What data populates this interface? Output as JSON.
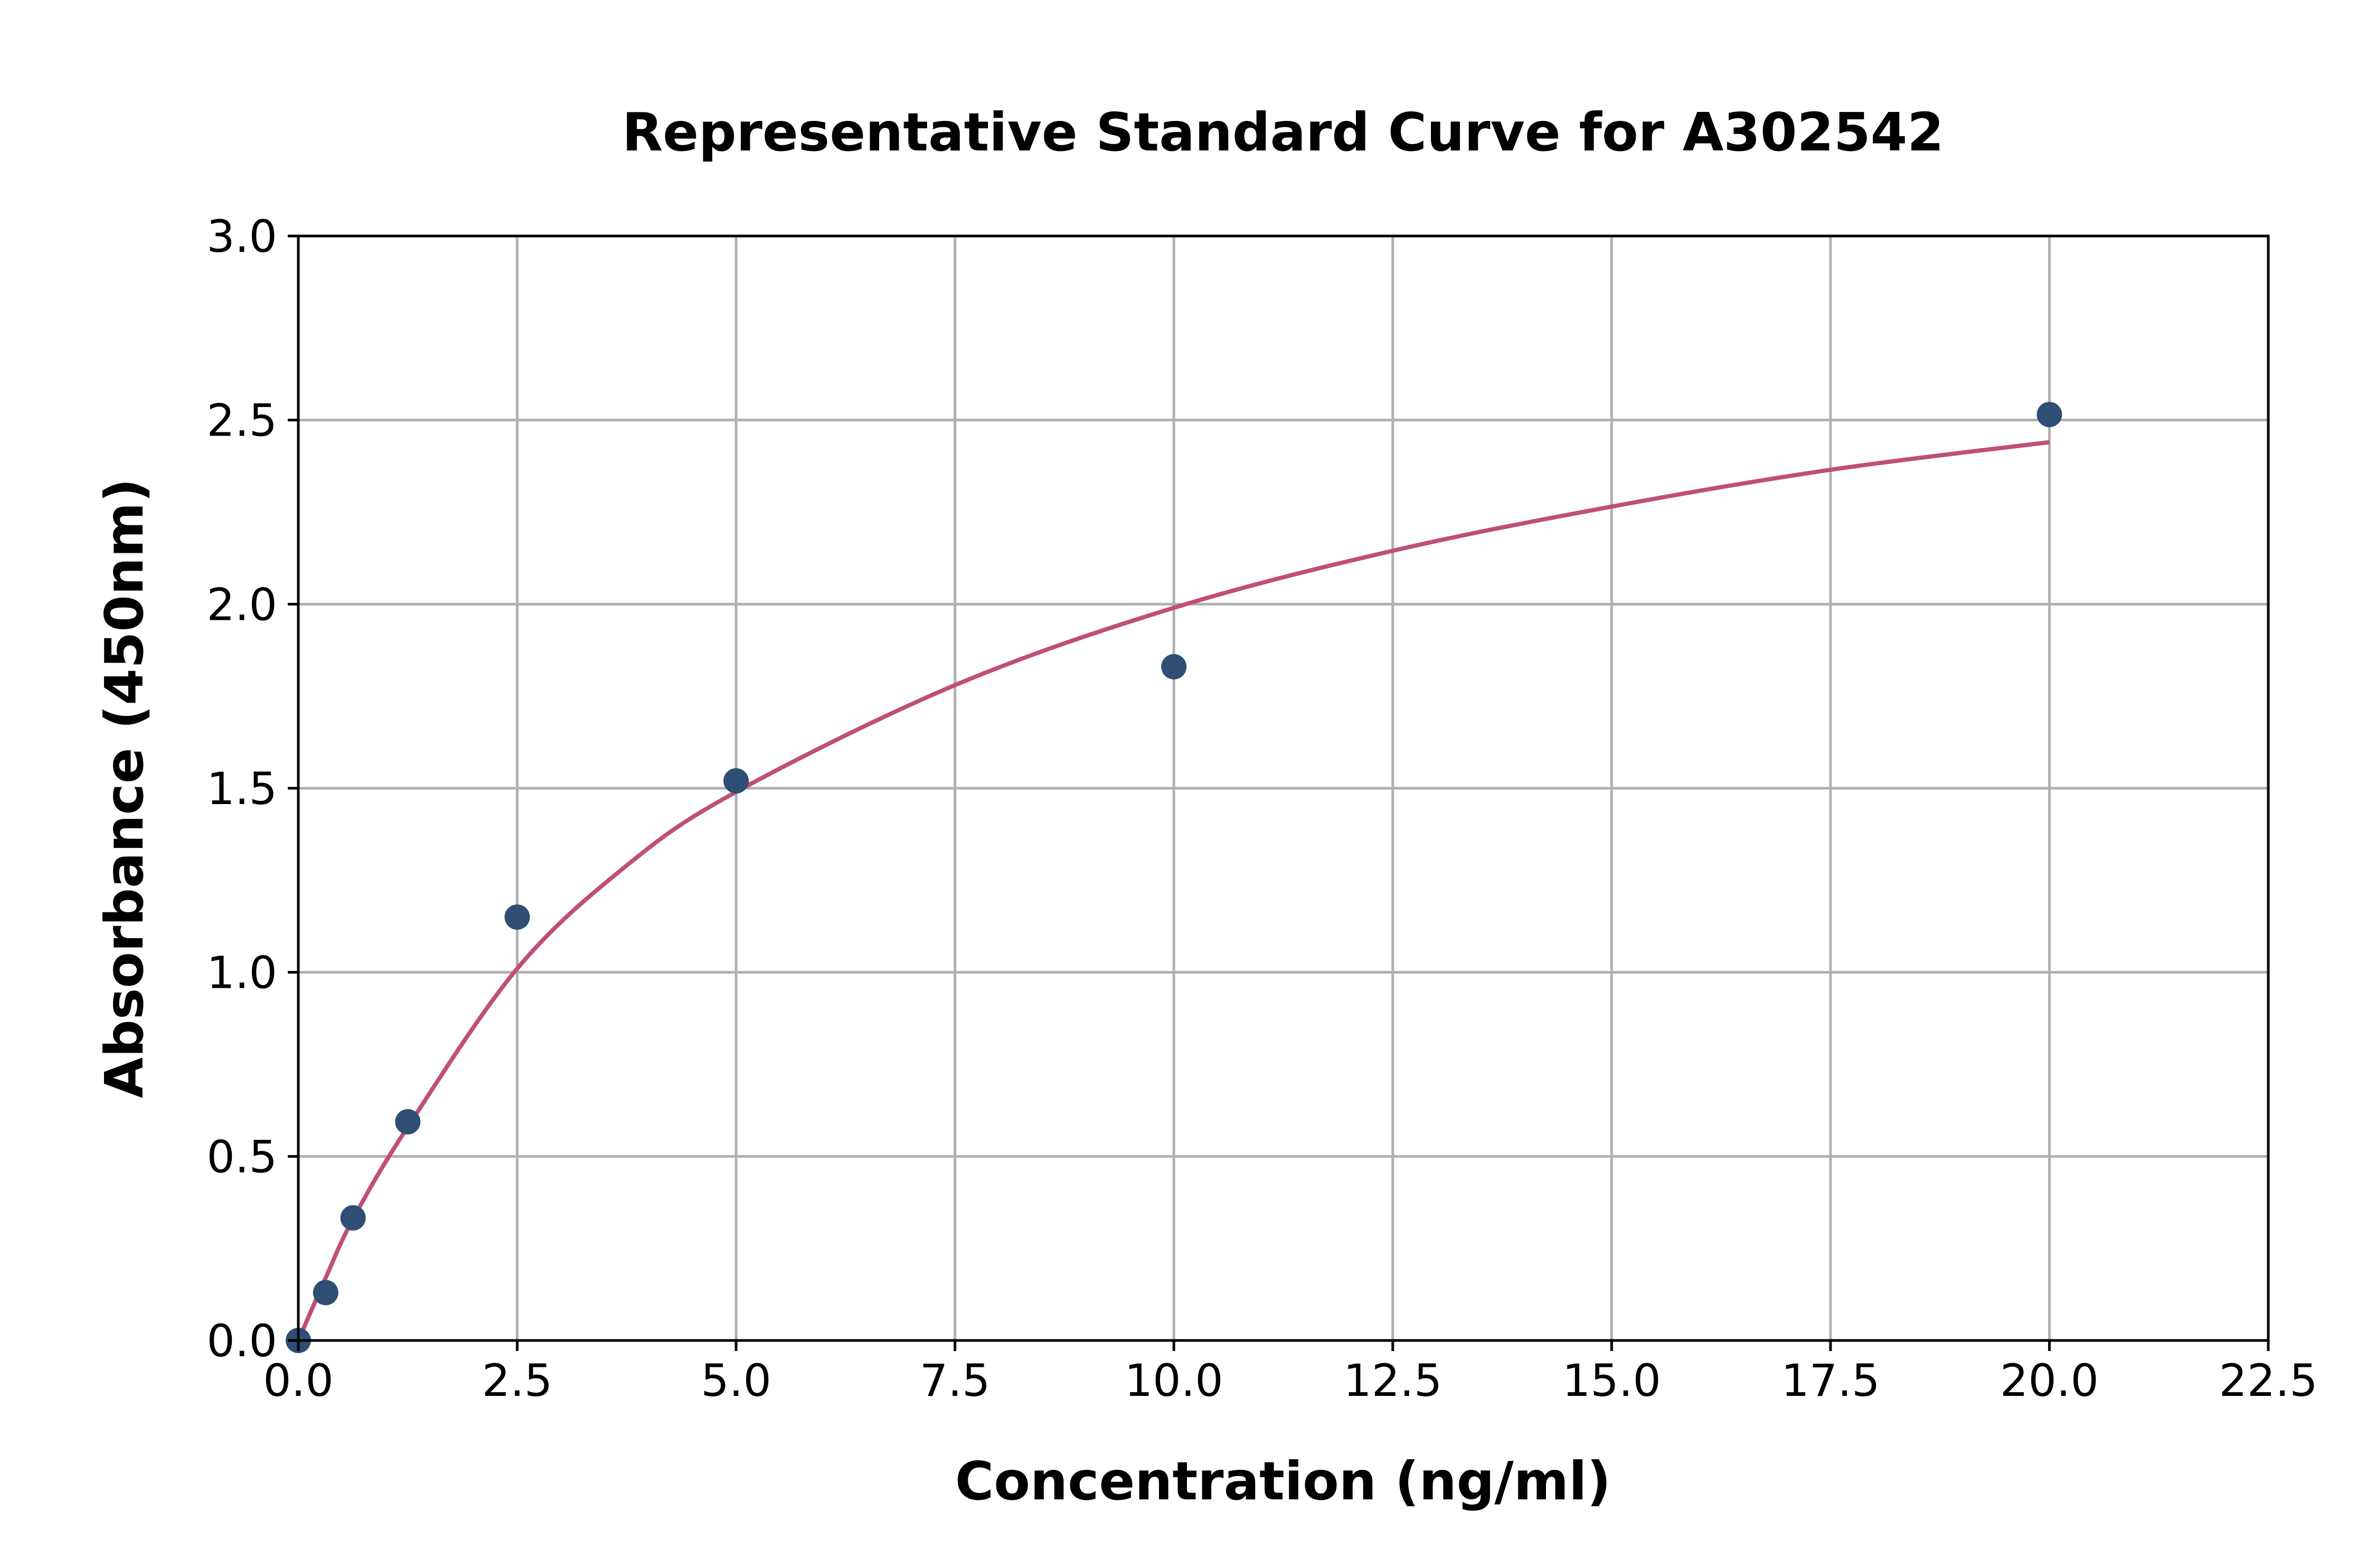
{
  "chart_data": {
    "type": "scatter",
    "title": "Representative Standard Curve for A302542",
    "xlabel": "Concentration (ng/ml)",
    "ylabel": "Absorbance (450nm)",
    "xlim": [
      0,
      22.5
    ],
    "ylim": [
      0,
      3.0
    ],
    "grid": true,
    "xticks": [
      "0.0",
      "2.5",
      "5.0",
      "7.5",
      "10.0",
      "12.5",
      "15.0",
      "17.5",
      "20.0",
      "22.5"
    ],
    "yticks": [
      "0.0",
      "0.5",
      "1.0",
      "1.5",
      "2.0",
      "2.5",
      "3.0"
    ],
    "series": [
      {
        "type": "scatter",
        "color": "#2e4f73",
        "x": [
          0,
          0.3125,
          0.625,
          1.25,
          2.5,
          5,
          10,
          20
        ],
        "y": [
          0.0,
          0.13,
          0.333,
          0.594,
          1.15,
          1.52,
          1.83,
          2.515
        ]
      },
      {
        "type": "line",
        "color": "#c04f75",
        "x": [
          0,
          0.3125,
          0.625,
          1.25,
          2.5,
          3.75,
          5,
          7.5,
          10,
          12.5,
          15,
          17.5,
          20
        ],
        "y": [
          0,
          0.17,
          0.33,
          0.58,
          1.01,
          1.29,
          1.49,
          1.78,
          1.99,
          2.145,
          2.265,
          2.365,
          2.44
        ]
      }
    ]
  }
}
